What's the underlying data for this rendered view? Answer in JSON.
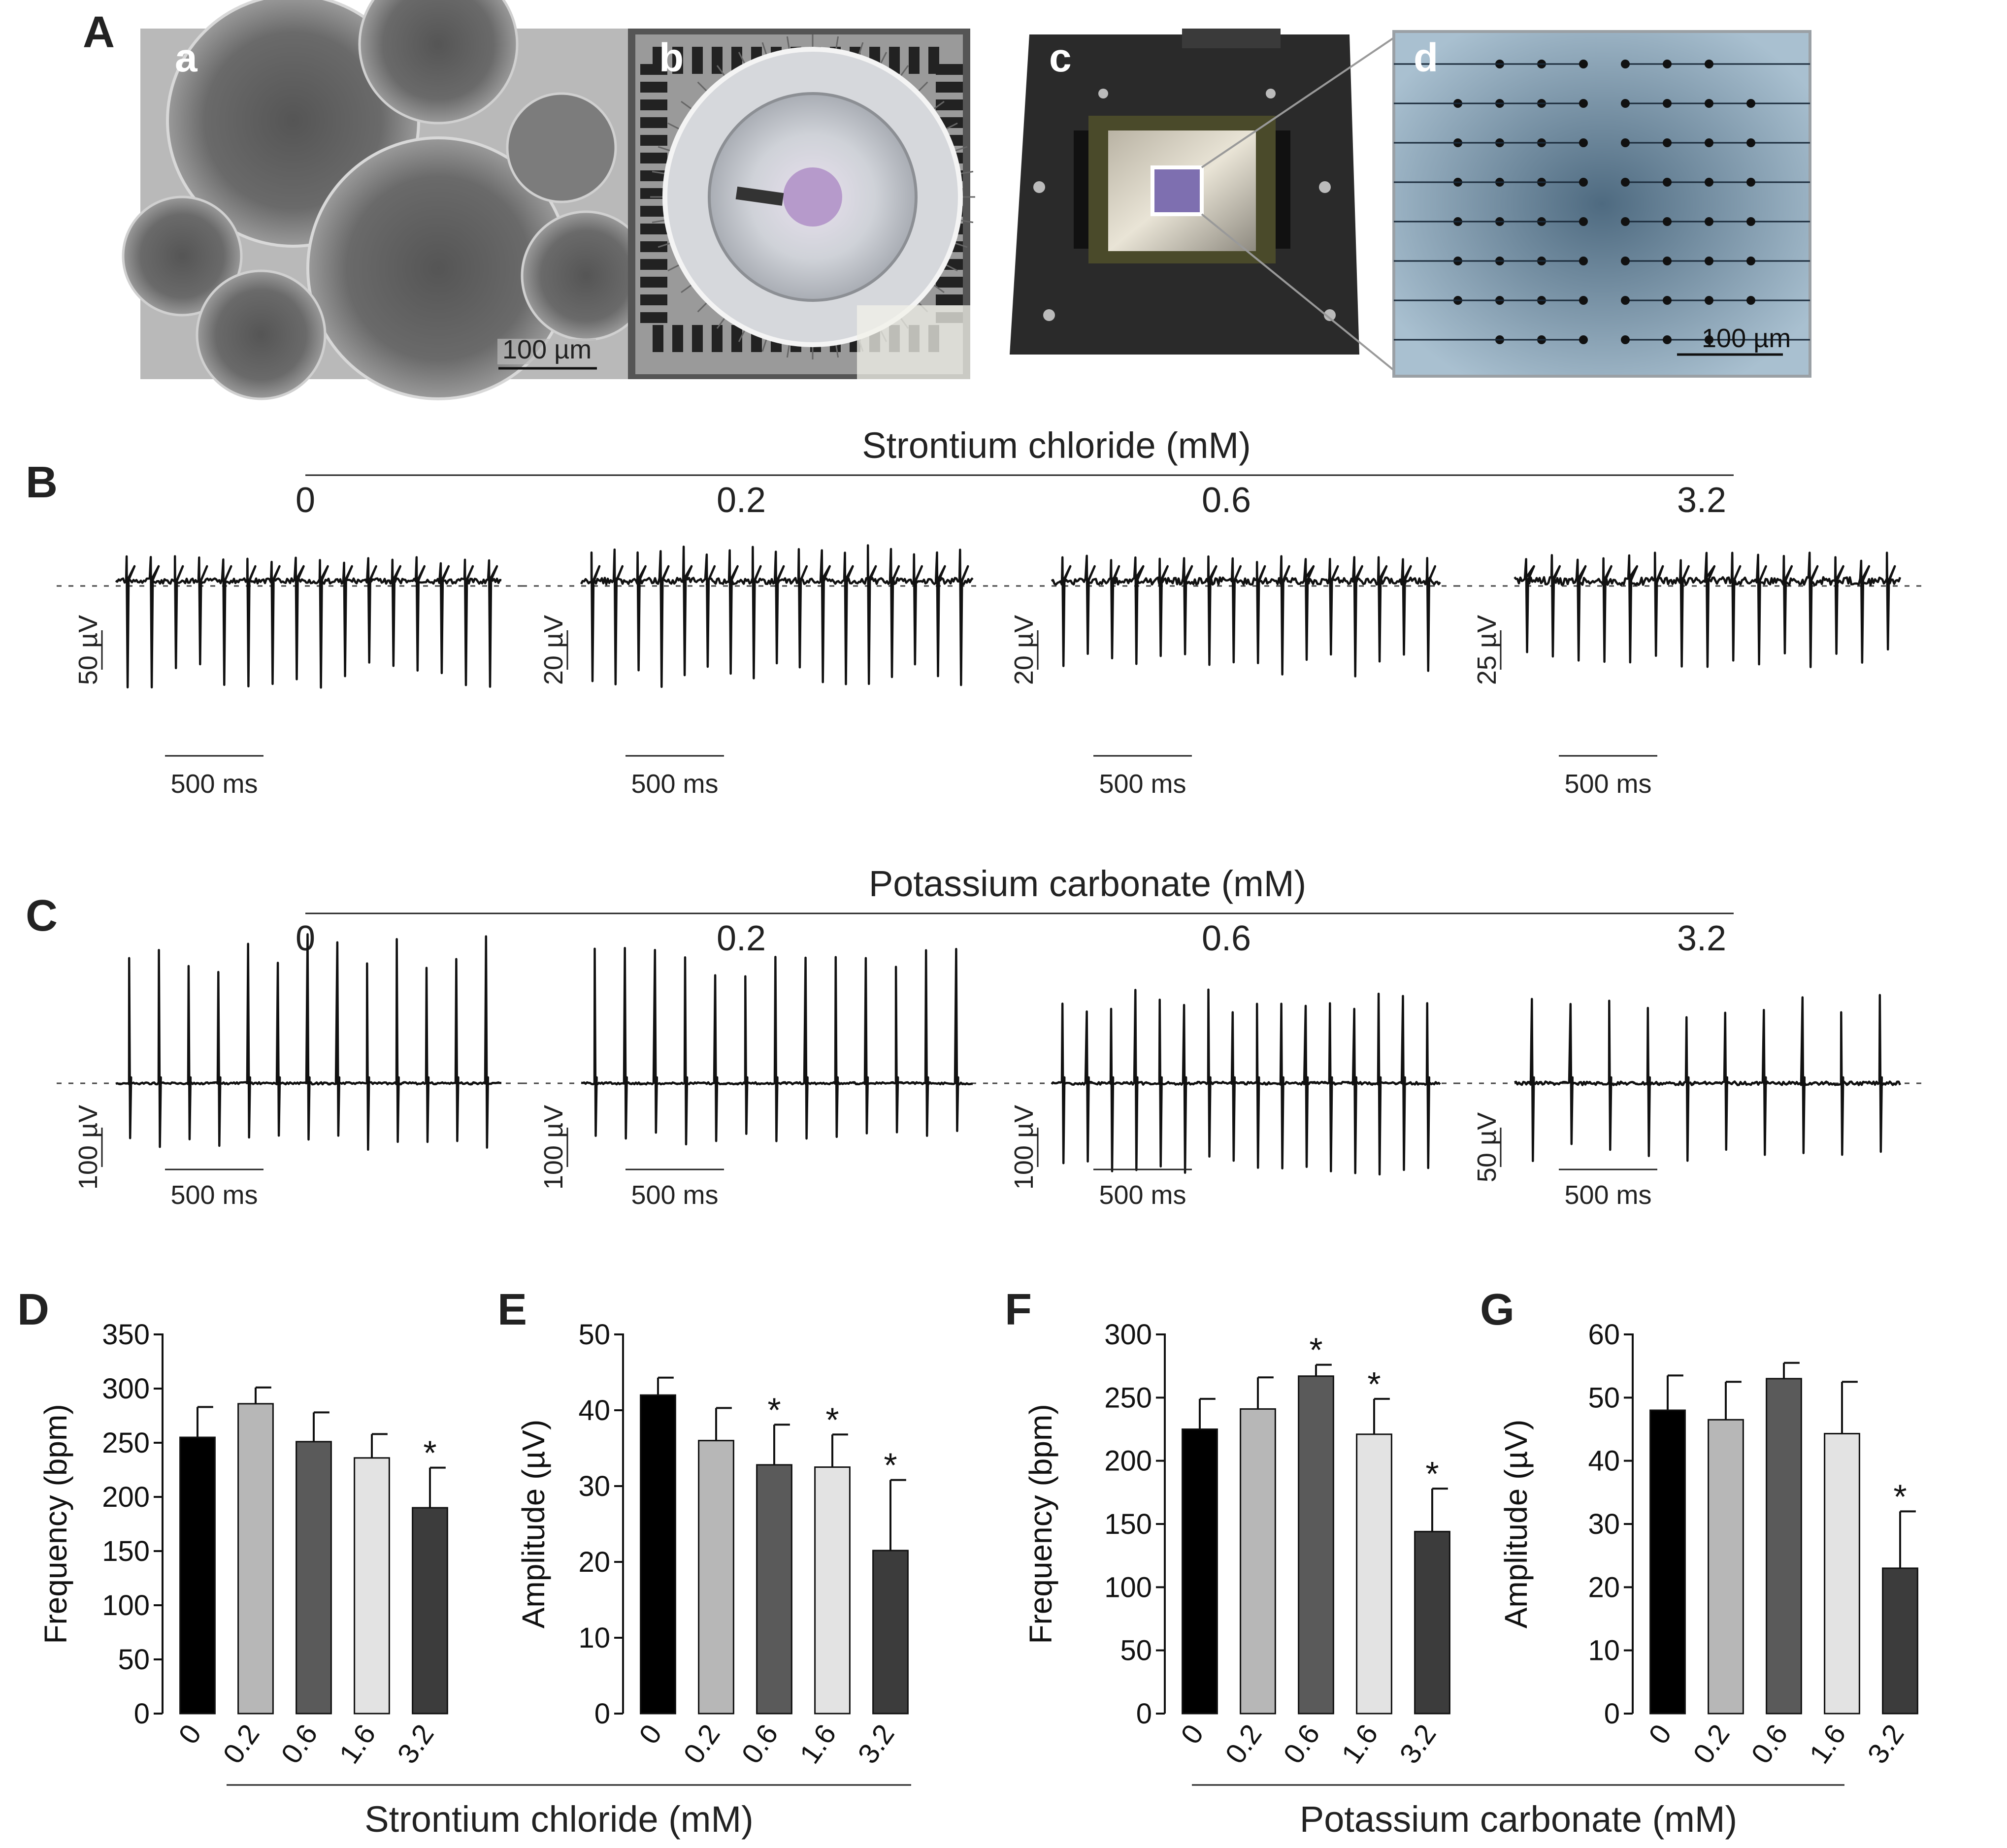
{
  "panels": {
    "A": "A",
    "B": "B",
    "C": "C",
    "D": "D",
    "E": "E",
    "F": "F",
    "G": "G"
  },
  "photos": [
    {
      "letter": "a",
      "scale_label": "100 µm"
    },
    {
      "letter": "b",
      "scale_label": ""
    },
    {
      "letter": "c",
      "scale_label": ""
    },
    {
      "letter": "d",
      "scale_label": "100 µm"
    }
  ],
  "rows": [
    {
      "title": "Strontium chloride (mM)",
      "traces": [
        {
          "conc": "0",
          "amp_scale": "50 µV",
          "time_scale": "500 ms",
          "beats": 16,
          "spike_up": 0.45,
          "spike_down": 1.5,
          "noise": 0.15,
          "baseline": "above"
        },
        {
          "conc": "0.2",
          "amp_scale": "20 µV",
          "time_scale": "500 ms",
          "beats": 17,
          "spike_up": 0.6,
          "spike_down": 1.5,
          "noise": 0.18,
          "baseline": "above"
        },
        {
          "conc": "0.6",
          "amp_scale": "20 µV",
          "time_scale": "500 ms",
          "beats": 16,
          "spike_up": 0.45,
          "spike_down": 1.35,
          "noise": 0.2,
          "baseline": "above"
        },
        {
          "conc": "3.2",
          "amp_scale": "25 µV",
          "time_scale": "500 ms",
          "beats": 15,
          "spike_up": 0.5,
          "spike_down": 1.2,
          "noise": 0.22,
          "baseline": "above"
        }
      ]
    },
    {
      "title": "Potassium carbonate (mM)",
      "traces": [
        {
          "conc": "0",
          "amp_scale": "100 µV",
          "time_scale": "500 ms",
          "beats": 13,
          "spike_up": 2.2,
          "spike_down": 1.0,
          "noise": 0.06,
          "baseline": "mid"
        },
        {
          "conc": "0.2",
          "amp_scale": "100 µV",
          "time_scale": "500 ms",
          "beats": 13,
          "spike_up": 2.0,
          "spike_down": 0.9,
          "noise": 0.06,
          "baseline": "mid"
        },
        {
          "conc": "0.6",
          "amp_scale": "100 µV",
          "time_scale": "500 ms",
          "beats": 16,
          "spike_up": 1.4,
          "spike_down": 1.4,
          "noise": 0.08,
          "baseline": "mid"
        },
        {
          "conc": "3.2",
          "amp_scale": "50 µV",
          "time_scale": "500 ms",
          "beats": 10,
          "spike_up": 1.3,
          "spike_down": 1.2,
          "noise": 0.1,
          "baseline": "mid"
        }
      ]
    }
  ],
  "chart_data": [
    {
      "type": "bar",
      "panel": "D",
      "categories": [
        "0",
        "0.2",
        "0.6",
        "1.6",
        "3.2"
      ],
      "values": [
        255,
        286,
        251,
        236,
        190
      ],
      "errors": [
        28,
        15,
        27,
        22,
        37
      ],
      "significant": [
        false,
        false,
        false,
        false,
        true
      ],
      "ylabel": "Frequency (bpm)",
      "xlabel": "Strontium chloride (mM)",
      "ylim": [
        0,
        350
      ],
      "yticks": [
        0,
        50,
        100,
        150,
        200,
        250,
        300,
        350
      ],
      "bar_colors": [
        "#000000",
        "#b7b7b7",
        "#5a5a5a",
        "#e3e3e3",
        "#3c3c3c"
      ],
      "star": "*"
    },
    {
      "type": "bar",
      "panel": "E",
      "categories": [
        "0",
        "0.2",
        "0.6",
        "1.6",
        "3.2"
      ],
      "values": [
        42,
        36,
        32.8,
        32.5,
        21.5
      ],
      "errors": [
        2.3,
        4.3,
        5.3,
        4.3,
        9.3
      ],
      "significant": [
        false,
        false,
        true,
        true,
        true
      ],
      "ylabel": "Amplitude (µV)",
      "xlabel": "",
      "ylim": [
        0,
        50
      ],
      "yticks": [
        0,
        10,
        20,
        30,
        40,
        50
      ],
      "bar_colors": [
        "#000000",
        "#b7b7b7",
        "#5a5a5a",
        "#e3e3e3",
        "#3c3c3c"
      ],
      "star": "*"
    },
    {
      "type": "bar",
      "panel": "F",
      "categories": [
        "0",
        "0.2",
        "0.6",
        "1.6",
        "3.2"
      ],
      "values": [
        225,
        241,
        267,
        221,
        144
      ],
      "errors": [
        24,
        25,
        9,
        28,
        34
      ],
      "significant": [
        false,
        false,
        true,
        true,
        true
      ],
      "ylabel": "Frequency (bpm)",
      "xlabel": "Potassium carbonate (mM)",
      "ylim": [
        0,
        300
      ],
      "yticks": [
        0,
        50,
        100,
        150,
        200,
        250,
        300
      ],
      "bar_colors": [
        "#000000",
        "#b7b7b7",
        "#5a5a5a",
        "#e3e3e3",
        "#3c3c3c"
      ],
      "star": "*"
    },
    {
      "type": "bar",
      "panel": "G",
      "categories": [
        "0",
        "0.2",
        "0.6",
        "1.6",
        "3.2"
      ],
      "values": [
        48,
        46.5,
        53,
        44.3,
        23
      ],
      "errors": [
        5.5,
        6,
        2.5,
        8.2,
        9
      ],
      "significant": [
        false,
        false,
        false,
        false,
        true
      ],
      "ylabel": "Amplitude (µV)",
      "xlabel": "",
      "ylim": [
        0,
        60
      ],
      "yticks": [
        0,
        10,
        20,
        30,
        40,
        50,
        60
      ],
      "bar_colors": [
        "#000000",
        "#b7b7b7",
        "#5a5a5a",
        "#e3e3e3",
        "#3c3c3c"
      ],
      "star": "*"
    }
  ]
}
